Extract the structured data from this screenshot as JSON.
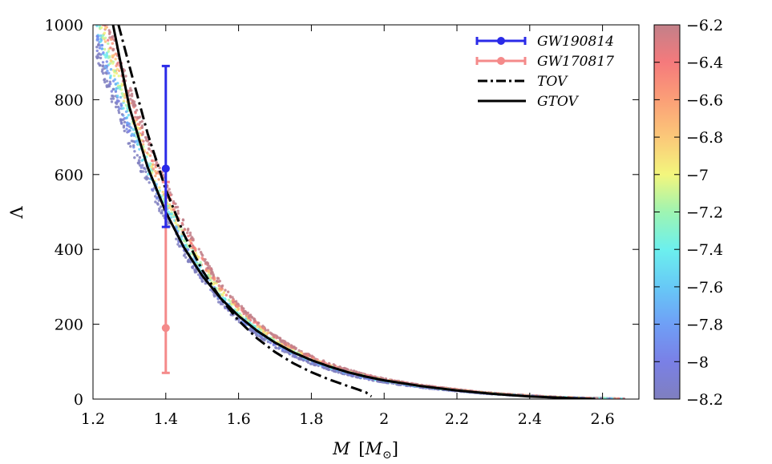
{
  "chart_data": {
    "type": "scatter",
    "xlabel": "M [M⊙]",
    "xlabel_main": "M",
    "xlabel_unit_open": "[",
    "xlabel_unit": "M",
    "xlabel_unit_sub": "⊙",
    "xlabel_unit_close": "]",
    "ylabel": "Λ",
    "xlim": [
      1.2,
      2.7
    ],
    "ylim": [
      0,
      1000
    ],
    "x_ticks": [
      1.2,
      1.4,
      1.6,
      1.8,
      2,
      2.2,
      2.4,
      2.6
    ],
    "x_tick_labels": [
      "1.2",
      "1.4",
      "1.6",
      "1.8",
      "2",
      "2.2",
      "2.4",
      "2.6"
    ],
    "y_ticks": [
      0,
      200,
      400,
      600,
      800,
      1000
    ],
    "y_tick_labels": [
      "0",
      "200",
      "400",
      "600",
      "800",
      "1000"
    ],
    "colorbar": {
      "range": [
        -8.2,
        -6.2
      ],
      "ticks": [
        -6.2,
        -6.4,
        -6.6,
        -6.8,
        -7,
        -7.2,
        -7.4,
        -7.6,
        -7.8,
        -8,
        -8.2
      ],
      "tick_labels": [
        "−6.2",
        "−6.4",
        "−6.6",
        "−6.8",
        "−7",
        "−7.2",
        "−7.4",
        "−7.6",
        "−7.8",
        "−8",
        "−8.2"
      ],
      "colors": {
        "-8.2": "#7f7fbf",
        "-8.0": "#7a80e6",
        "-7.8": "#6f9ff6",
        "-7.6": "#67c9f6",
        "-7.4": "#6cf0ee",
        "-7.2": "#9ef4b2",
        "-7.0": "#f3f67d",
        "-6.8": "#fbc879",
        "-6.6": "#fb9f77",
        "-6.4": "#f57a7c",
        "-6.2": "#c28089"
      }
    },
    "series": [
      {
        "name": "GW190814",
        "label": "GW190814",
        "type": "errorbar",
        "color": "#2a2ae8",
        "x": 1.4,
        "y": 616,
        "y_low": 460,
        "y_high": 890
      },
      {
        "name": "GW170817",
        "label": "GW170817",
        "type": "errorbar",
        "color": "#f48a8a",
        "x": 1.4,
        "y": 190,
        "y_low": 70,
        "y_high": 580
      },
      {
        "name": "TOV",
        "label": "TOV",
        "type": "line",
        "style": "dash-dot",
        "color": "#000000",
        "x": [
          1.27,
          1.3,
          1.35,
          1.4,
          1.45,
          1.5,
          1.55,
          1.6,
          1.65,
          1.7,
          1.75,
          1.8,
          1.85,
          1.9,
          1.93,
          1.95,
          1.955,
          1.96,
          1.965
        ],
        "y": [
          1000,
          890,
          710,
          560,
          440,
          345,
          270,
          210,
          163,
          126,
          96,
          72,
          52,
          35,
          25,
          18,
          14,
          10,
          7
        ]
      },
      {
        "name": "GTOV",
        "label": "GTOV",
        "type": "line",
        "style": "solid",
        "color": "#000000",
        "x": [
          1.255,
          1.3,
          1.35,
          1.4,
          1.45,
          1.5,
          1.55,
          1.6,
          1.65,
          1.7,
          1.75,
          1.8,
          1.85,
          1.9,
          1.95,
          2.0,
          2.1,
          2.2,
          2.3,
          2.4,
          2.5,
          2.58
        ],
        "y": [
          1000,
          780,
          620,
          500,
          405,
          330,
          270,
          222,
          183,
          151,
          125,
          104,
          87,
          72,
          60,
          50,
          35,
          23,
          14,
          7,
          3,
          0
        ]
      }
    ],
    "scatter_band": {
      "description_free": true,
      "x_range": [
        1.21,
        2.66
      ],
      "lambda_fit_x": [
        1.2,
        1.3,
        1.4,
        1.5,
        1.6,
        1.7,
        1.8,
        1.9,
        2.0,
        2.2,
        2.4,
        2.6,
        2.66
      ],
      "lambda_fit_y": [
        1060,
        760,
        530,
        350,
        232,
        155,
        105,
        72,
        50,
        24,
        9,
        2,
        0
      ]
    },
    "legend": {
      "position": "top-right",
      "entries": [
        "GW190814",
        "GW170817",
        "TOV",
        "GTOV"
      ]
    }
  }
}
